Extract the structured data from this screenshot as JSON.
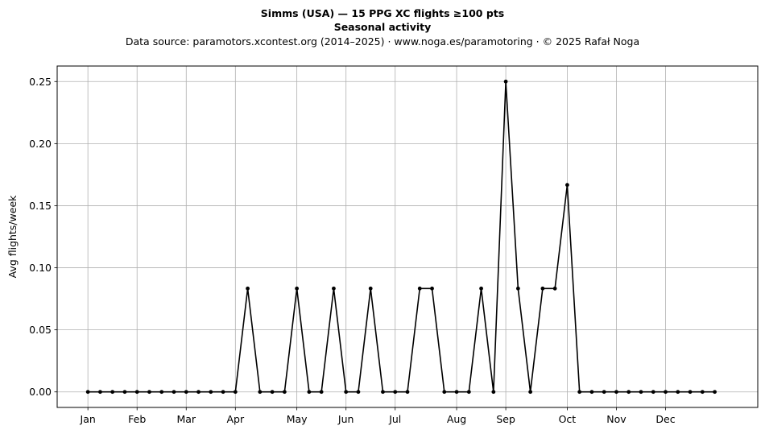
{
  "chart_data": {
    "type": "line",
    "title": "Simms (USA)  —  15 PPG XC flights ≥100 pts",
    "subtitle": "Seasonal activity",
    "source_note": "Data source: paramotors.xcontest.org (2014–2025)  ·  www.noga.es/paramotoring  ·  © 2025 Rafał Noga",
    "xlabel": "",
    "ylabel": "Avg flights/week",
    "xlim": [
      -2.5,
      54.5
    ],
    "ylim": [
      -0.0125,
      0.2625
    ],
    "y_ticks": [
      0.0,
      0.05,
      0.1,
      0.15,
      0.2,
      0.25
    ],
    "y_tick_labels": [
      "0.00",
      "0.05",
      "0.10",
      "0.15",
      "0.20",
      "0.25"
    ],
    "x_ticks": [
      0,
      4,
      8,
      12,
      17,
      21,
      25,
      30,
      34,
      39,
      43,
      47
    ],
    "x_tick_labels": [
      "Jan",
      "Feb",
      "Mar",
      "Apr",
      "May",
      "Jun",
      "Jul",
      "Aug",
      "Sep",
      "Oct",
      "Nov",
      "Dec"
    ],
    "grid": true,
    "series": [
      {
        "x": [
          0,
          1,
          2,
          3,
          4,
          5,
          6,
          7,
          8,
          9,
          10,
          11,
          12,
          13,
          14,
          15,
          16,
          17,
          18,
          19,
          20,
          21,
          22,
          23,
          24,
          25,
          26,
          27,
          28,
          29,
          30,
          31,
          32,
          33,
          34,
          35,
          36,
          37,
          38,
          39,
          40,
          41,
          42,
          43,
          44,
          45,
          46,
          47,
          48,
          49,
          50,
          51
        ],
        "values": [
          0,
          0,
          0,
          0,
          0,
          0,
          0,
          0,
          0,
          0,
          0,
          0,
          0,
          0.0833,
          0,
          0,
          0,
          0.0833,
          0,
          0,
          0.0833,
          0,
          0,
          0.0833,
          0,
          0,
          0,
          0.0833,
          0.0833,
          0,
          0,
          0,
          0.0833,
          0,
          0.25,
          0.0833,
          0,
          0.0833,
          0.0833,
          0.1667,
          0,
          0,
          0,
          0,
          0,
          0,
          0,
          0,
          0,
          0,
          0,
          0
        ],
        "color": "#000000",
        "marker": "circle"
      }
    ]
  }
}
